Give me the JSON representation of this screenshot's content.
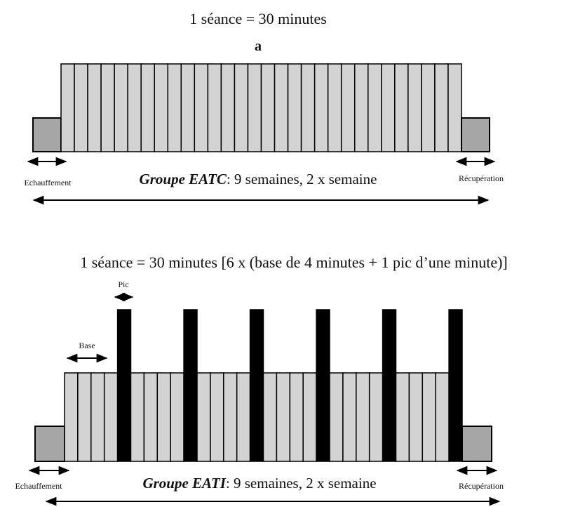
{
  "panel_a": {
    "session_text": "1 séance = 30 minutes",
    "panel_label": "a",
    "warmup_label": "Echauffement",
    "recovery_label": "Récupération",
    "group_name": "Groupe EATC",
    "group_details": ": 9 semaines, 2 x semaine",
    "blocks": 30
  },
  "panel_b": {
    "session_text": "1 séance = 30 minutes [6 x (base de 4 minutes + 1 pic d’une minute)]",
    "peak_label": "Pic",
    "base_label": "Base",
    "warmup_label": "Echauffement",
    "recovery_label": "Récupération",
    "group_name": "Groupe EATI",
    "group_details": ": 9 semaines, 2 x semaine",
    "cycles": 6,
    "base_minutes_per_cycle": 4,
    "peak_minutes_per_cycle": 1
  },
  "colors": {
    "block_fill": "#d3d3d3",
    "warmup_fill": "#a6a6a6",
    "peak_fill": "#000000",
    "stroke": "#000000"
  }
}
